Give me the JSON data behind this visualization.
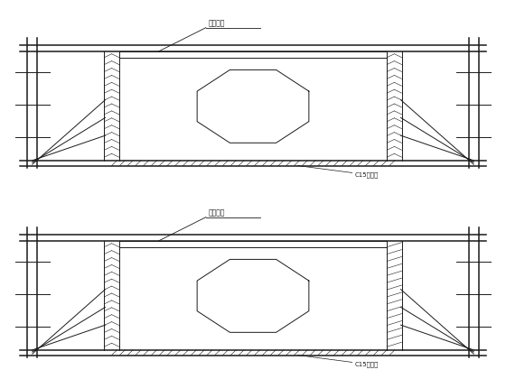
{
  "bg_color": "#ffffff",
  "line_color": "#1a1a1a",
  "label1": "龙骨钢筋",
  "label2": "C15垫层砼",
  "fig_width": 5.6,
  "fig_height": 4.2,
  "dpi": 100
}
